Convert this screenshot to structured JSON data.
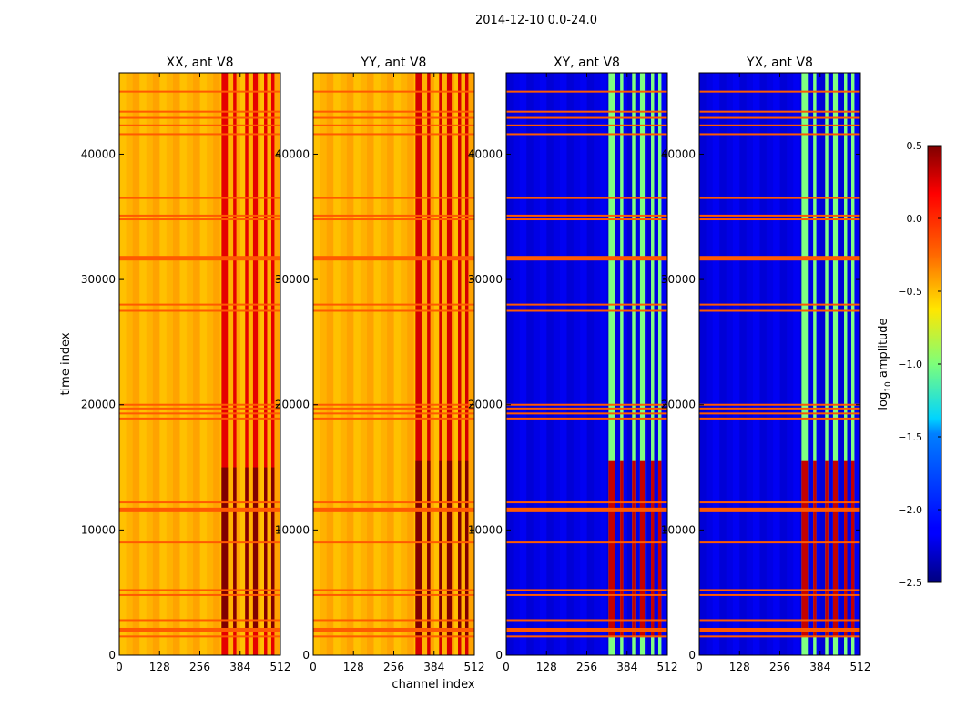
{
  "figure": {
    "suptitle": "2014-12-10 0.0-24.0"
  },
  "chart_data": {
    "type": "heatmap",
    "xlabel": "channel index",
    "ylabel": "time index",
    "x_ticks": [
      0,
      128,
      256,
      384,
      512
    ],
    "y_ticks": [
      0,
      10000,
      20000,
      30000,
      40000
    ],
    "xlim": [
      0,
      512
    ],
    "ylim": [
      0,
      46500
    ],
    "rfi_band_channels": [
      [
        325,
        345
      ],
      [
        362,
        372
      ],
      [
        400,
        410
      ],
      [
        425,
        440
      ],
      [
        460,
        470
      ],
      [
        483,
        493
      ]
    ],
    "flagged_time_rows": [
      1500,
      2000,
      2800,
      4800,
      5200,
      9000,
      11600,
      12200,
      18900,
      19300,
      19700,
      20000,
      27500,
      28000,
      31700,
      34800,
      35100,
      36500,
      41600,
      42300,
      42900,
      43400,
      45000
    ],
    "panels": [
      {
        "title": "XX, ant V8",
        "baseline_log10_amp": -0.4,
        "band_log10_amp": 0.2,
        "burst_log10_amp": 0.5,
        "burst_range": [
          2000,
          15000
        ]
      },
      {
        "title": "YY, ant V8",
        "baseline_log10_amp": -0.4,
        "band_log10_amp": 0.25,
        "burst_log10_amp": 0.5,
        "burst_range": [
          1500,
          15500
        ]
      },
      {
        "title": "XY, ant V8",
        "baseline_log10_amp": -2.2,
        "band_log10_amp": -1.0,
        "burst_log10_amp": 0.3,
        "burst_range": [
          1500,
          15500
        ]
      },
      {
        "title": "YX, ant V8",
        "baseline_log10_amp": -2.2,
        "band_log10_amp": -1.0,
        "burst_log10_amp": 0.3,
        "burst_range": [
          1500,
          15500
        ]
      }
    ],
    "colorbar": {
      "label": "log$_{10}$ amplitude",
      "label_base": "log",
      "label_sub": "10",
      "label_rest": " amplitude",
      "vmin": -2.5,
      "vmax": 0.5,
      "ticks": [
        "0.5",
        "0.0",
        "−0.5",
        "−1.0",
        "−1.5",
        "−2.0",
        "−2.5"
      ],
      "tick_values": [
        0.5,
        0.0,
        -0.5,
        -1.0,
        -1.5,
        -2.0,
        -2.5
      ],
      "colormap": "jet"
    }
  }
}
